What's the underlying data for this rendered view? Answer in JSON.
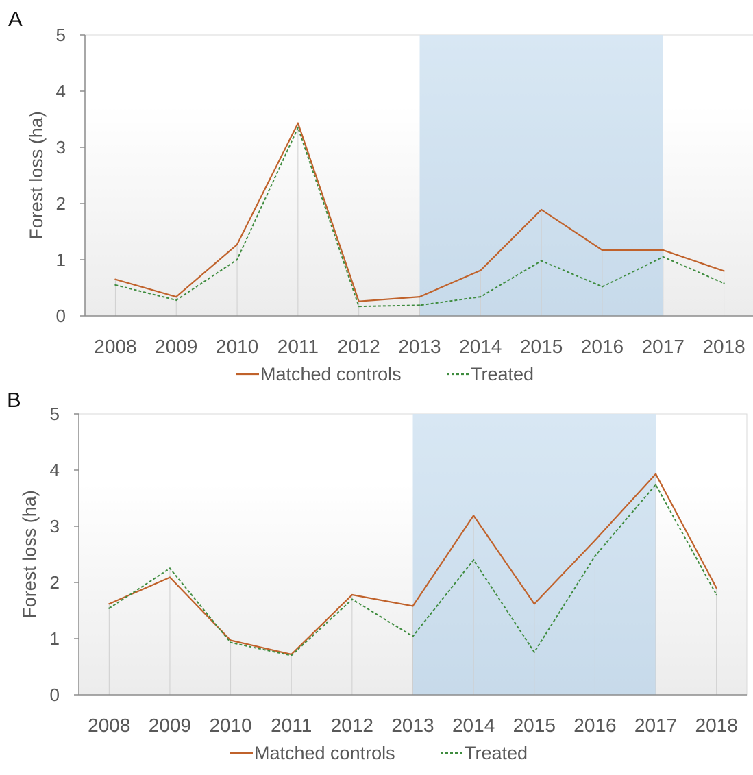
{
  "chart_data": [
    {
      "panel_label": "A",
      "type": "line",
      "categories": [
        "2008",
        "2009",
        "2010",
        "2011",
        "2012",
        "2013",
        "2014",
        "2015",
        "2016",
        "2017",
        "2018"
      ],
      "series": [
        {
          "name": "Matched controls",
          "values": [
            0.65,
            0.34,
            1.27,
            3.43,
            0.26,
            0.34,
            0.81,
            1.89,
            1.17,
            1.17,
            0.8
          ],
          "color": "#c0622b",
          "style": "solid"
        },
        {
          "name": "Treated",
          "values": [
            0.55,
            0.28,
            1.0,
            3.35,
            0.17,
            0.19,
            0.34,
            0.98,
            0.52,
            1.05,
            0.58
          ],
          "color": "#3f8c3f",
          "style": "dashed"
        }
      ],
      "highlight": {
        "from": "2013",
        "to": "2017",
        "color": "#cfe1f0"
      },
      "ylabel": "Forest loss (ha)",
      "xlabel": "",
      "ylim": [
        0,
        5
      ],
      "yticks": [
        "0",
        "1",
        "2",
        "3",
        "4",
        "5"
      ],
      "legend_position": "bottom"
    },
    {
      "panel_label": "B",
      "type": "line",
      "categories": [
        "2008",
        "2009",
        "2010",
        "2011",
        "2012",
        "2013",
        "2014",
        "2015",
        "2016",
        "2017",
        "2018"
      ],
      "series": [
        {
          "name": "Matched controls",
          "values": [
            1.62,
            2.09,
            0.97,
            0.72,
            1.78,
            1.58,
            3.19,
            1.62,
            2.75,
            3.93,
            1.9
          ],
          "color": "#c0622b",
          "style": "solid"
        },
        {
          "name": "Treated",
          "values": [
            1.54,
            2.25,
            0.93,
            0.7,
            1.7,
            1.04,
            2.4,
            0.76,
            2.47,
            3.74,
            1.78
          ],
          "color": "#3f8c3f",
          "style": "dashed"
        }
      ],
      "highlight": {
        "from": "2013",
        "to": "2017",
        "color": "#cfe1f0"
      },
      "ylabel": "Forest loss (ha)",
      "xlabel": "",
      "ylim": [
        0,
        5
      ],
      "yticks": [
        "0",
        "1",
        "2",
        "3",
        "4",
        "5"
      ],
      "legend_position": "bottom"
    }
  ]
}
